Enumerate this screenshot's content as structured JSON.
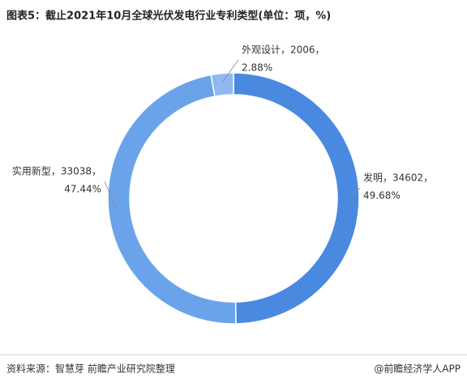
{
  "chart_data": {
    "type": "donut",
    "title": "图表5：截止2021年10月全球光伏发电行业专利类型(单位：项，%)",
    "categories": [
      "发明",
      "实用新型",
      "外观设计"
    ],
    "values": [
      34602,
      33038,
      2006
    ],
    "value_labels": [
      [
        "发明，34602，",
        "49.68%"
      ],
      [
        "实用新型，33038，",
        "47.44%"
      ],
      [
        "外观设计，2006，",
        "2.88%"
      ]
    ],
    "colors": [
      "#4a89e0",
      "#6aa3ea",
      "#8db9f0"
    ]
  },
  "footer": {
    "source": "资料来源：智慧芽 前瞻产业研究院整理",
    "brand": "@前瞻经济学人APP"
  }
}
